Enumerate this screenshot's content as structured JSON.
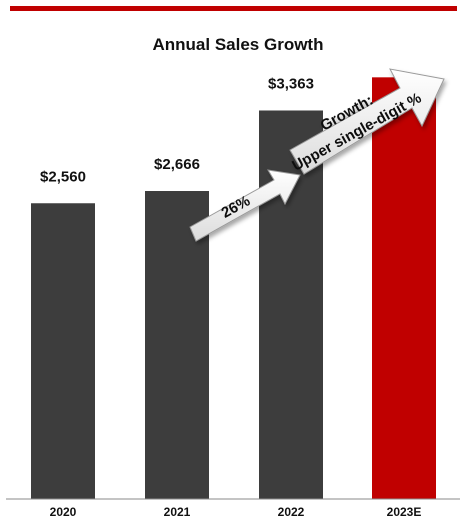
{
  "chart_data": {
    "type": "bar",
    "title": "Annual Sales Growth",
    "categories": [
      "2020",
      "2021",
      "2022",
      "2023E"
    ],
    "values": [
      2560,
      2666,
      3363,
      3650
    ],
    "value_labels": [
      "$2,560",
      "$2,666",
      "$3,363",
      ""
    ],
    "bar_colors": [
      "#3d3d3d",
      "#3d3d3d",
      "#3d3d3d",
      "#c00000"
    ],
    "accent_color": "#c00000",
    "ylim": [
      0,
      3800
    ],
    "grid": false,
    "annotations": [
      {
        "text": "26%",
        "from": "2021",
        "to": "2022"
      },
      {
        "lines": [
          "Growth:",
          "Upper single-digit %"
        ],
        "from": "2022",
        "to": "2023E"
      }
    ]
  }
}
